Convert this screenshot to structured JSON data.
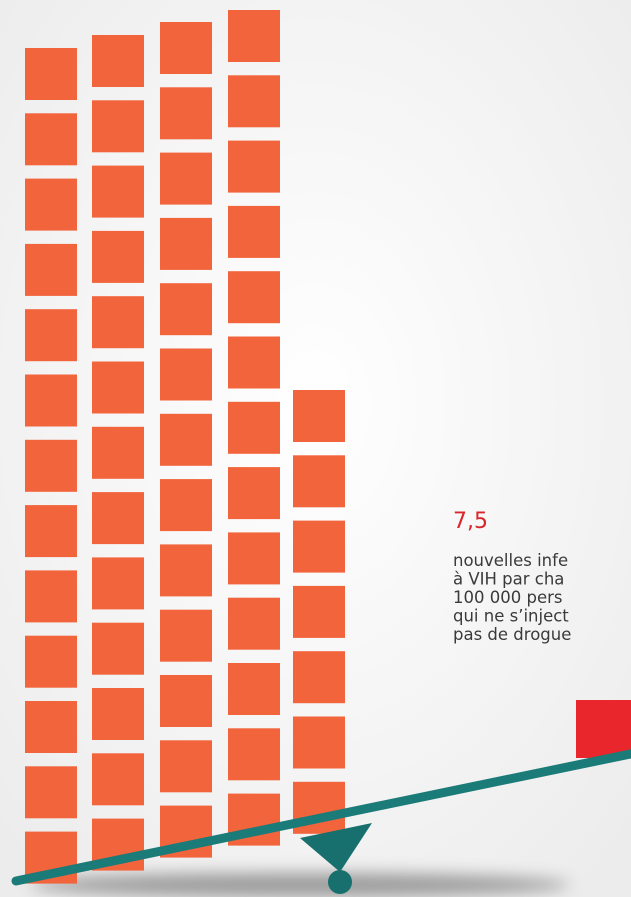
{
  "stat": {
    "value": "7,5",
    "lines": [
      "nouvelles infe",
      "à VIH par cha",
      "100 000 pers",
      "qui ne s’inject",
      "pas de drogue"
    ]
  }
}
